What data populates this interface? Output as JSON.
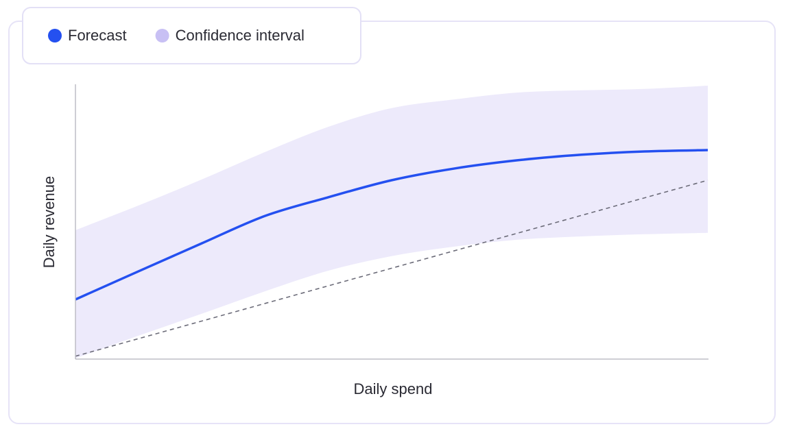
{
  "chart_data": {
    "type": "line",
    "x_label": "Daily spend",
    "y_label": "Daily revenue",
    "x": [
      0,
      10,
      20,
      30,
      40,
      50,
      60,
      70,
      80,
      90,
      100
    ],
    "xlim": [
      0,
      100
    ],
    "ylim": [
      0,
      100
    ],
    "series": [
      {
        "name": "Forecast",
        "color": "#2450f0",
        "values": [
          21.5,
          31.8,
          42,
          52,
          58.8,
          65,
          69.3,
          72.3,
          74.3,
          75.5,
          76
        ]
      },
      {
        "name": "Confidence interval",
        "color": "#c8c0f4",
        "band_color": "#edeafb",
        "upper": [
          46.8,
          55.8,
          65.3,
          75.3,
          84.5,
          91.3,
          94.5,
          97,
          97.8,
          98.3,
          99.5
        ],
        "lower": [
          0,
          8.3,
          16.3,
          24.5,
          32,
          37.3,
          40.8,
          43.3,
          44.5,
          45.3,
          45.8
        ]
      }
    ],
    "reference_line": {
      "x": [
        0,
        100
      ],
      "values": [
        0.8,
        65
      ],
      "color": "#6b6b78",
      "dashed": true
    }
  }
}
